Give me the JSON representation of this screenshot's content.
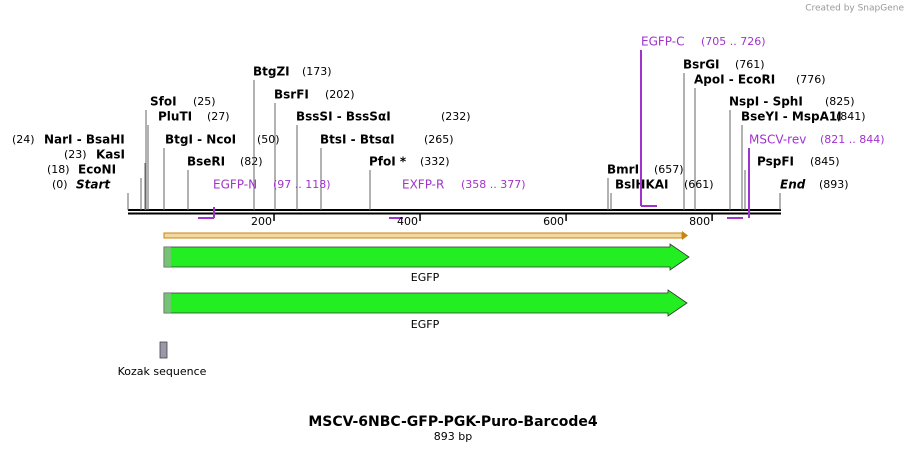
{
  "header": {
    "watermark": "Created by SnapGene"
  },
  "sites": [
    {
      "name": "Start",
      "position": "(0)"
    },
    {
      "name": "EcoNI",
      "position": "(18)"
    },
    {
      "name": "KasI",
      "position": "(23)"
    },
    {
      "name": "NarI  -  BsaHI",
      "position": "(24)"
    },
    {
      "name": "SfoI",
      "position": "(25)"
    },
    {
      "name": "PluTI",
      "position": "(27)"
    },
    {
      "name": "BtgI  -  NcoI",
      "position": "(50)"
    },
    {
      "name": "BseRI",
      "position": "(82)"
    },
    {
      "name": "BtgZI",
      "position": "(173)"
    },
    {
      "name": "BsrFI",
      "position": "(202)"
    },
    {
      "name": "BssSI  -  BssSαI",
      "position": "(232)"
    },
    {
      "name": "BtsI  -  BtsαI",
      "position": "(265)"
    },
    {
      "name": "PfoI *",
      "position": "(332)"
    },
    {
      "name": "BmrI",
      "position": "(657)"
    },
    {
      "name": "BslHKAI",
      "position": "(661)"
    },
    {
      "name": "BsrGI",
      "position": "(761)"
    },
    {
      "name": "ApoI  -  EcoRI",
      "position": "(776)"
    },
    {
      "name": "NspI  -  SphI",
      "position": "(825)"
    },
    {
      "name": "BseYI  -  MspA1I",
      "position": "(841)"
    },
    {
      "name": "PspFI",
      "position": "(845)"
    },
    {
      "name": "End",
      "position": "(893)"
    }
  ],
  "primers": [
    {
      "name": "EGFP-N",
      "range": "(97 .. 118)"
    },
    {
      "name": "EXFP-R",
      "range": "(358 .. 377)"
    },
    {
      "name": "EGFP-C",
      "range": "(705 .. 726)"
    },
    {
      "name": "MSCV-rev",
      "range": "(821 .. 844)"
    }
  ],
  "ruler": [
    200,
    400,
    600,
    800
  ],
  "features": [
    {
      "name": "EGFP"
    },
    {
      "name": "EGFP"
    },
    {
      "name": "Kozak sequence"
    }
  ],
  "footer": {
    "title": "MSCV-6NBC-GFP-PGK-Puro-Barcode4",
    "length": "893 bp"
  }
}
